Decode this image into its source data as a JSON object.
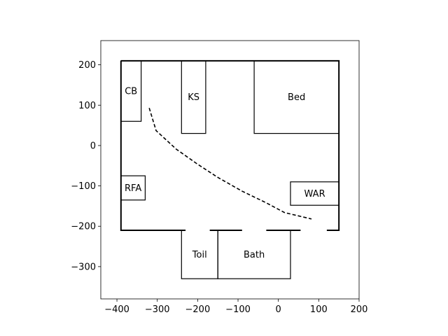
{
  "chart_data": {
    "type": "scatter",
    "title": "",
    "xlabel": "",
    "ylabel": "",
    "xlim": [
      -440,
      200
    ],
    "ylim": [
      -380,
      260
    ],
    "xticks": [
      -400,
      -300,
      -200,
      -100,
      0,
      100,
      200
    ],
    "yticks": [
      -300,
      -200,
      -100,
      0,
      100,
      200
    ],
    "xtick_labels": [
      "−400",
      "−300",
      "−200",
      "−100",
      "0",
      "100",
      "200"
    ],
    "ytick_labels": [
      "−300",
      "−200",
      "−100",
      "0",
      "100",
      "200"
    ],
    "grid": false,
    "room_outline": [
      [
        -390,
        210
      ],
      [
        150,
        210
      ],
      [
        150,
        -210
      ],
      [
        -390,
        -210
      ]
    ],
    "rooms": [
      {
        "label": "CB",
        "x0": -390,
        "x1": -340,
        "y0": 60,
        "y1": 210
      },
      {
        "label": "KS",
        "x0": -240,
        "x1": -180,
        "y0": 30,
        "y1": 210
      },
      {
        "label": "Bed",
        "x0": -60,
        "x1": 150,
        "y0": 30,
        "y1": 210
      },
      {
        "label": "RFA",
        "x0": -390,
        "x1": -330,
        "y0": -135,
        "y1": -75
      },
      {
        "label": "WAR",
        "x0": 30,
        "x1": 150,
        "y0": -148,
        "y1": -90
      },
      {
        "label": "Toil",
        "x0": -240,
        "x1": -150,
        "y0": -330,
        "y1": -210
      },
      {
        "label": "Bath",
        "x0": -150,
        "x1": 30,
        "y0": -330,
        "y1": -210
      }
    ],
    "doors": [
      [
        -230,
        -170
      ],
      [
        -90,
        -30
      ],
      [
        55,
        120
      ]
    ],
    "path": {
      "style": "dashed",
      "color": "#000000",
      "points": [
        [
          -320,
          93
        ],
        [
          -303,
          37
        ],
        [
          -253,
          -9
        ],
        [
          -202,
          -45
        ],
        [
          -150,
          -79
        ],
        [
          -90,
          -113
        ],
        [
          -30,
          -142
        ],
        [
          15,
          -166
        ],
        [
          40,
          -172
        ],
        [
          82,
          -182
        ]
      ]
    }
  }
}
